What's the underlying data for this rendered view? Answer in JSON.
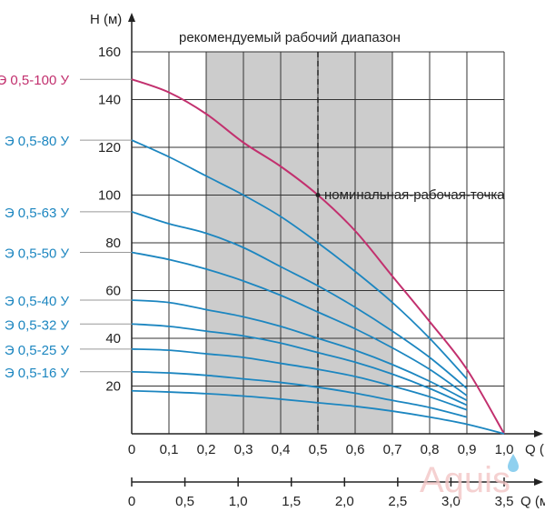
{
  "chart_data": {
    "type": "line",
    "title": "рекомендуемый рабочий диапазон",
    "ylabel": "H (м)",
    "xlabel": "Q (",
    "xlabel2": "Q (м",
    "xlim": [
      0,
      1.0
    ],
    "ylim": [
      0,
      160
    ],
    "x_ticks": [
      "0",
      "0,1",
      "0,2",
      "0,3",
      "0,4",
      "0,5",
      "0,6",
      "0,7",
      "0,8",
      "0,9",
      "1,0"
    ],
    "x2_ticks": [
      "0",
      "0,5",
      "1,0",
      "1,5",
      "2,0",
      "2,5",
      "3,0",
      "3,5"
    ],
    "x2_values": [
      0,
      0.5,
      1.0,
      1.5,
      2.0,
      2.5,
      3.0,
      3.5
    ],
    "x2_scale": 3.5,
    "y_ticks": [
      "20",
      "40",
      "60",
      "80",
      "100",
      "120",
      "140",
      "160"
    ],
    "y_tick_values": [
      20,
      40,
      60,
      80,
      100,
      120,
      140,
      160
    ],
    "grid": true,
    "recommended_range": [
      0.2,
      0.7
    ],
    "nominal_q": 0.5,
    "annotation": "номинальная-рабочая-точка",
    "annotation_point": {
      "x": 0.5,
      "y": 100
    },
    "series": [
      {
        "name": "Э 0,5-100 У",
        "color": "#c2306e",
        "x": [
          0,
          0.1,
          0.2,
          0.3,
          0.4,
          0.5,
          0.6,
          0.7,
          0.8,
          0.9,
          1.0
        ],
        "values": [
          148.5,
          143,
          134,
          122,
          112,
          100,
          85,
          66,
          47,
          27,
          0
        ]
      },
      {
        "name": "Э 0,5-80 У",
        "color": "#1c86c0",
        "x": [
          0,
          0.1,
          0.2,
          0.3,
          0.4,
          0.5,
          0.6,
          0.7,
          0.8,
          0.9
        ],
        "values": [
          123,
          116,
          108,
          100,
          91,
          80,
          68,
          55,
          40,
          23
        ]
      },
      {
        "name": "Э 0,5-63 У",
        "color": "#1c86c0",
        "x": [
          0,
          0.1,
          0.2,
          0.3,
          0.4,
          0.5,
          0.6,
          0.7,
          0.8,
          0.9
        ],
        "values": [
          93,
          88,
          84,
          78,
          70,
          62,
          53,
          43,
          32,
          19
        ]
      },
      {
        "name": "Э 0,5-50 У",
        "color": "#1c86c0",
        "x": [
          0,
          0.1,
          0.2,
          0.3,
          0.4,
          0.5,
          0.6,
          0.7,
          0.8,
          0.9
        ],
        "values": [
          76,
          73,
          69,
          64,
          58,
          51,
          44,
          36,
          27,
          16
        ]
      },
      {
        "name": "Э 0,5-40 У",
        "color": "#1c86c0",
        "x": [
          0,
          0.1,
          0.2,
          0.3,
          0.4,
          0.5,
          0.6,
          0.7,
          0.8,
          0.9
        ],
        "values": [
          56,
          55,
          52,
          49,
          45,
          40,
          35,
          29,
          22,
          14
        ]
      },
      {
        "name": "Э 0,5-32 У",
        "color": "#1c86c0",
        "x": [
          0,
          0.1,
          0.2,
          0.3,
          0.4,
          0.5,
          0.6,
          0.7,
          0.8,
          0.9
        ],
        "values": [
          46,
          45,
          43,
          41,
          38,
          34,
          30,
          25,
          19,
          12
        ]
      },
      {
        "name": "Э 0,5-25 У",
        "color": "#1c86c0",
        "x": [
          0,
          0.1,
          0.2,
          0.3,
          0.4,
          0.5,
          0.6,
          0.7,
          0.8,
          0.9
        ],
        "values": [
          35.5,
          35,
          33.5,
          32,
          29.5,
          27,
          24,
          20,
          15.5,
          10
        ]
      },
      {
        "name": "Э 0,5-16 У",
        "color": "#1c86c0",
        "x": [
          0,
          0.1,
          0.2,
          0.3,
          0.4,
          0.5,
          0.6,
          0.7,
          0.8,
          0.9
        ],
        "values": [
          26,
          25.5,
          24.5,
          23,
          21.5,
          19.5,
          17,
          14,
          11,
          7
        ]
      },
      {
        "name": "",
        "color": "#1c86c0",
        "x": [
          0,
          0.1,
          0.2,
          0.3,
          0.4,
          0.5,
          0.6,
          0.7,
          0.8,
          0.9,
          1.0
        ],
        "values": [
          18,
          17.5,
          16.8,
          15.8,
          14.5,
          13,
          11.5,
          9.5,
          7,
          4,
          0
        ]
      }
    ]
  },
  "watermark": "Aquis"
}
